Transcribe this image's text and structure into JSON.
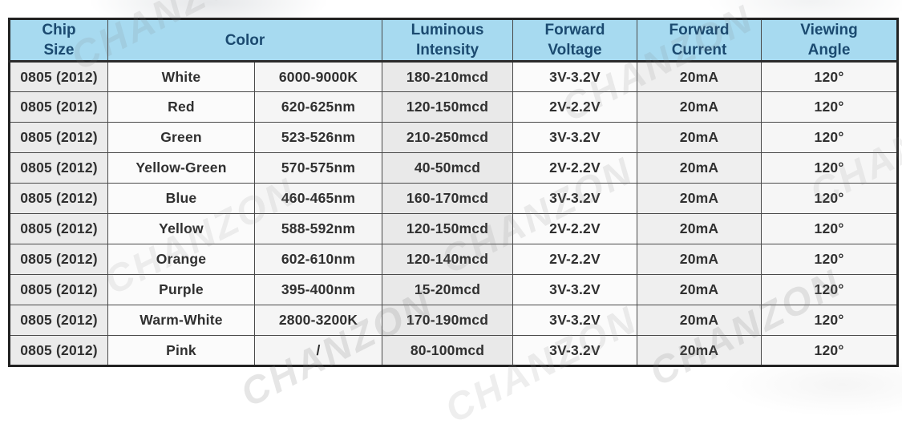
{
  "watermark": {
    "text": "CHANZON"
  },
  "colors": {
    "header_bg": "#a7daf0",
    "header_text": "#1b4a70",
    "grid_line": "#4a4a4a",
    "outer_border": "#222222"
  },
  "table": {
    "header": {
      "chip_size": "Chip Size",
      "color": "Color",
      "luminous_intensity": "Luminous Intensity",
      "forward_voltage": "Forward Voltage",
      "forward_current": "Forward Current",
      "viewing_angle": "Viewing Angle"
    },
    "cell_ids": [
      "chip-size",
      "color-name",
      "color-value",
      "luminous-intensity",
      "forward-voltage",
      "forward-current",
      "viewing-angle"
    ],
    "rows": [
      [
        "0805 (2012)",
        "White",
        "6000-9000K",
        "180-210mcd",
        "3V-3.2V",
        "20mA",
        "120°"
      ],
      [
        "0805 (2012)",
        "Red",
        "620-625nm",
        "120-150mcd",
        "2V-2.2V",
        "20mA",
        "120°"
      ],
      [
        "0805 (2012)",
        "Green",
        "523-526nm",
        "210-250mcd",
        "3V-3.2V",
        "20mA",
        "120°"
      ],
      [
        "0805 (2012)",
        "Yellow-Green",
        "570-575nm",
        "40-50mcd",
        "2V-2.2V",
        "20mA",
        "120°"
      ],
      [
        "0805 (2012)",
        "Blue",
        "460-465nm",
        "160-170mcd",
        "3V-3.2V",
        "20mA",
        "120°"
      ],
      [
        "0805 (2012)",
        "Yellow",
        "588-592nm",
        "120-150mcd",
        "2V-2.2V",
        "20mA",
        "120°"
      ],
      [
        "0805 (2012)",
        "Orange",
        "602-610nm",
        "120-140mcd",
        "2V-2.2V",
        "20mA",
        "120°"
      ],
      [
        "0805 (2012)",
        "Purple",
        "395-400nm",
        "15-20mcd",
        "3V-3.2V",
        "20mA",
        "120°"
      ],
      [
        "0805 (2012)",
        "Warm-White",
        "2800-3200K",
        "170-190mcd",
        "3V-3.2V",
        "20mA",
        "120°"
      ],
      [
        "0805 (2012)",
        "Pink",
        "/",
        "80-100mcd",
        "3V-3.2V",
        "20mA",
        "120°"
      ]
    ]
  }
}
